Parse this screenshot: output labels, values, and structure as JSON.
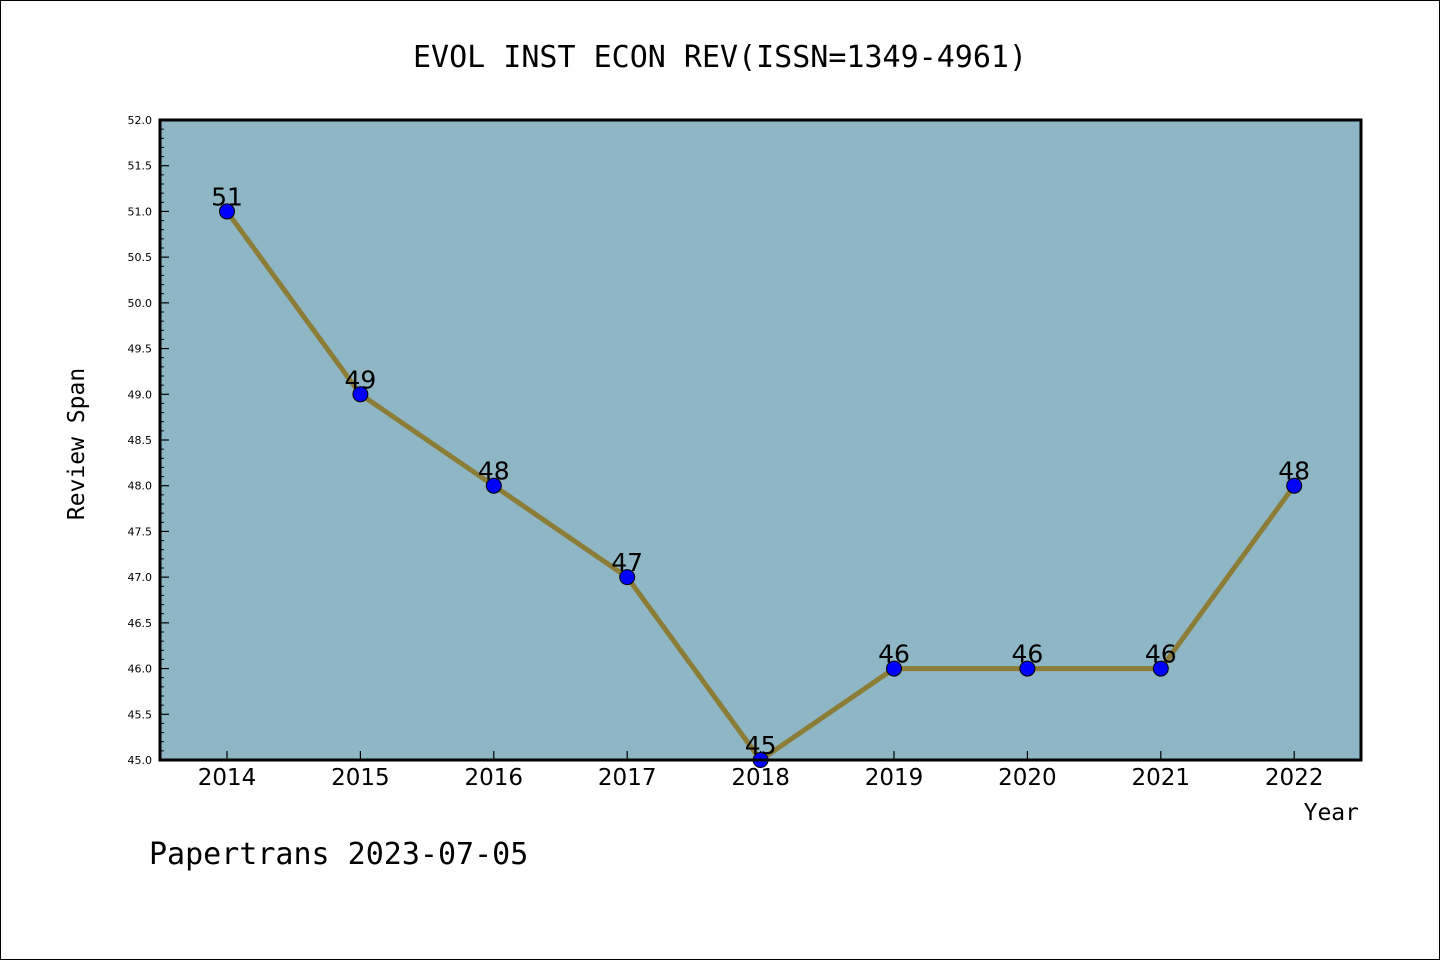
{
  "chart_data": {
    "type": "line",
    "title": "EVOL INST ECON REV(ISSN=1349-4961)",
    "xlabel": "Year",
    "ylabel": "Review Span",
    "categories": [
      "2014",
      "2015",
      "2016",
      "2017",
      "2018",
      "2019",
      "2020",
      "2021",
      "2022"
    ],
    "series": [
      {
        "values": [
          51,
          49,
          48,
          47,
          45,
          46,
          46,
          46,
          48
        ]
      }
    ],
    "data_labels": [
      "51",
      "49",
      "48",
      "47",
      "45",
      "46",
      "46",
      "46",
      "48"
    ],
    "y_ticks": [
      "45.0",
      "45.5",
      "46.0",
      "46.5",
      "47.0",
      "47.5",
      "48.0",
      "48.5",
      "49.0",
      "49.5",
      "50.0",
      "50.5",
      "51.0",
      "51.5",
      "52.0"
    ],
    "ylim": [
      45,
      52
    ],
    "grid": false,
    "colors": {
      "plot_background": "#8fb6c5",
      "line": "#8b7d37",
      "marker": "#0000ff"
    }
  },
  "footer": "Papertrans 2023-07-05"
}
